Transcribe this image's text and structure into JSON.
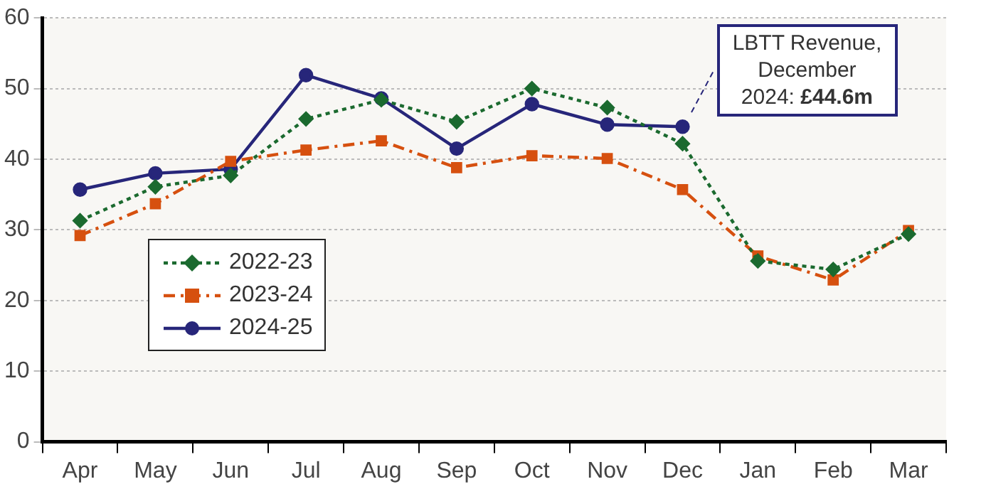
{
  "chart_data": {
    "type": "line",
    "categories": [
      "Apr",
      "May",
      "Jun",
      "Jul",
      "Aug",
      "Sep",
      "Oct",
      "Nov",
      "Dec",
      "Jan",
      "Feb",
      "Mar"
    ],
    "series": [
      {
        "name": "2022-23",
        "color": "#1b6a2f",
        "marker": "diamond",
        "line_style": "dotted",
        "values": [
          31.3,
          36.1,
          37.7,
          45.7,
          48.4,
          45.3,
          50.0,
          47.3,
          42.2,
          25.6,
          24.4,
          29.4
        ]
      },
      {
        "name": "2023-24",
        "color": "#d6500f",
        "marker": "square",
        "line_style": "dashed",
        "values": [
          29.2,
          33.7,
          39.7,
          41.3,
          42.6,
          38.8,
          40.5,
          40.1,
          35.7,
          26.3,
          22.9,
          29.9
        ]
      },
      {
        "name": "2024-25",
        "color": "#27267a",
        "marker": "circle",
        "line_style": "solid",
        "values": [
          35.7,
          38.0,
          38.6,
          51.9,
          48.6,
          41.5,
          47.8,
          44.9,
          44.6,
          null,
          null,
          null
        ]
      }
    ],
    "ylim": [
      0,
      60
    ],
    "yticks": [
      0,
      10,
      20,
      30,
      40,
      50,
      60
    ],
    "grid": "y",
    "legend": "bottom left",
    "annotations": [
      {
        "text": "LBTT Revenue, December 2024: £44.6m",
        "x": "Dec",
        "y": 44.6
      }
    ]
  }
}
